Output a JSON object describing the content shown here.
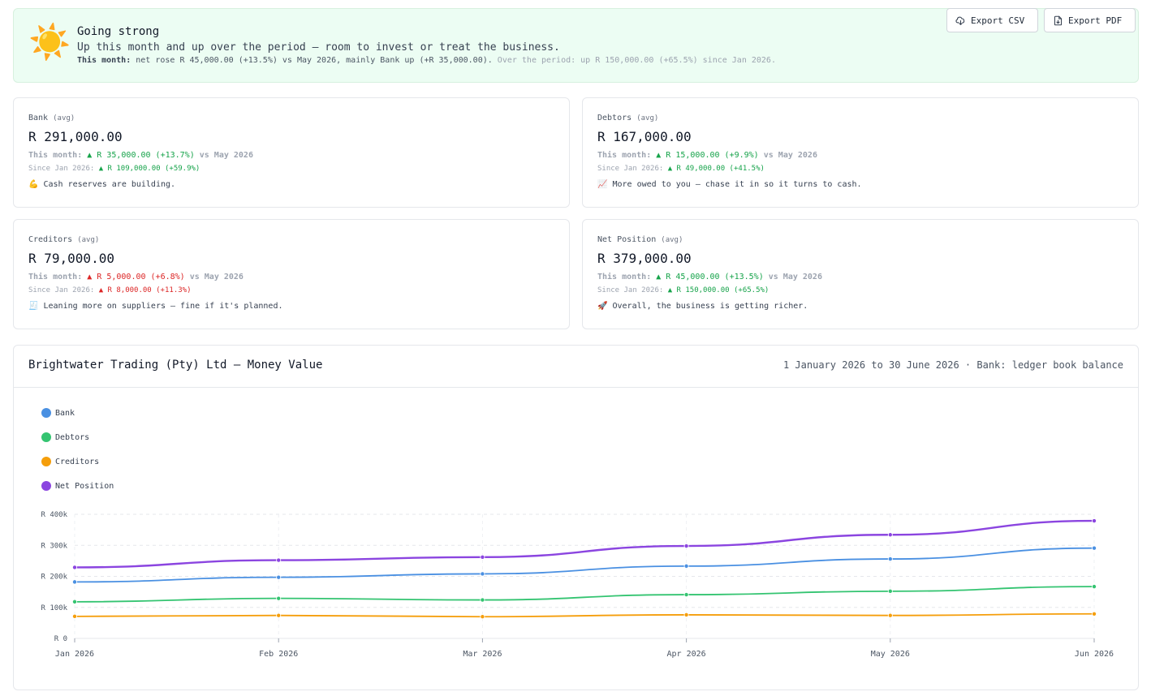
{
  "banner": {
    "icon": "sun-icon",
    "emoji": "☀️",
    "title": "Going strong",
    "subtitle": "Up this month and up over the period — room to invest or treat the business.",
    "detail_label": "This month:",
    "detail_text": "net rose R 45,000.00 (+13.5%) vs May 2026, mainly Bank up (+R 35,000.00).",
    "detail_period": "Over the period: up R 150,000.00 (+65.5%) since Jan 2026."
  },
  "toolbar": {
    "export_csv_label": "Export CSV",
    "export_pdf_label": "Export PDF"
  },
  "cards": [
    {
      "label": "Bank",
      "avg": "(avg)",
      "value": "R 291,000.00",
      "month_label": "This month:",
      "month_change": "▲ R 35,000.00 (+13.7%)",
      "month_vs": "vs May 2026",
      "month_tone": "green",
      "since_label": "Since Jan 2026:",
      "since_change": "▲ R 109,000.00 (+59.9%)",
      "since_tone": "green",
      "note_emoji": "💪",
      "note": "Cash reserves are building."
    },
    {
      "label": "Debtors",
      "avg": "(avg)",
      "value": "R 167,000.00",
      "month_label": "This month:",
      "month_change": "▲ R 15,000.00 (+9.9%)",
      "month_vs": "vs May 2026",
      "month_tone": "green",
      "since_label": "Since Jan 2026:",
      "since_change": "▲ R 49,000.00 (+41.5%)",
      "since_tone": "green",
      "note_emoji": "📈",
      "note": "More owed to you — chase it in so it turns to cash."
    },
    {
      "label": "Creditors",
      "avg": "(avg)",
      "value": "R 79,000.00",
      "month_label": "This month:",
      "month_change": "▲ R 5,000.00 (+6.8%)",
      "month_vs": "vs May 2026",
      "month_tone": "red",
      "since_label": "Since Jan 2026:",
      "since_change": "▲ R 8,000.00 (+11.3%)",
      "since_tone": "red",
      "note_emoji": "🧾",
      "note": "Leaning more on suppliers — fine if it's planned."
    },
    {
      "label": "Net Position",
      "avg": "(avg)",
      "value": "R 379,000.00",
      "month_label": "This month:",
      "month_change": "▲ R 45,000.00 (+13.5%)",
      "month_vs": "vs May 2026",
      "month_tone": "green",
      "since_label": "Since Jan 2026:",
      "since_change": "▲ R 150,000.00 (+65.5%)",
      "since_tone": "green",
      "note_emoji": "🚀",
      "note": "Overall, the business is getting richer."
    }
  ],
  "chart_header": {
    "title": "Brightwater Trading (Pty) Ltd — Money Value",
    "range": "1 January 2026 to 30 June 2026 · Bank: ledger book balance"
  },
  "chart_data": {
    "type": "line",
    "title": "Brightwater Trading (Pty) Ltd — Money Value",
    "categories": [
      "Jan 2026",
      "Feb 2026",
      "Mar 2026",
      "Apr 2026",
      "May 2026",
      "Jun 2026"
    ],
    "y_ticks": [
      0,
      100000,
      200000,
      300000,
      400000
    ],
    "y_tick_labels": [
      "R 0",
      "R 100k",
      "R 200k",
      "R 300k",
      "R 400k"
    ],
    "ylim": [
      0,
      400000
    ],
    "grid": true,
    "legend_position": "top-left",
    "series": [
      {
        "name": "Bank",
        "color": "#4a90e2",
        "values": [
          182000,
          197000,
          208000,
          233000,
          256000,
          291000
        ]
      },
      {
        "name": "Debtors",
        "color": "#34c471",
        "values": [
          118000,
          129000,
          124000,
          141000,
          152000,
          167000
        ]
      },
      {
        "name": "Creditors",
        "color": "#f59e0b",
        "values": [
          71000,
          74000,
          70000,
          76000,
          74000,
          79000
        ]
      },
      {
        "name": "Net Position",
        "color": "#8b45e0",
        "values": [
          229000,
          252000,
          262000,
          298000,
          334000,
          379000
        ]
      }
    ]
  }
}
